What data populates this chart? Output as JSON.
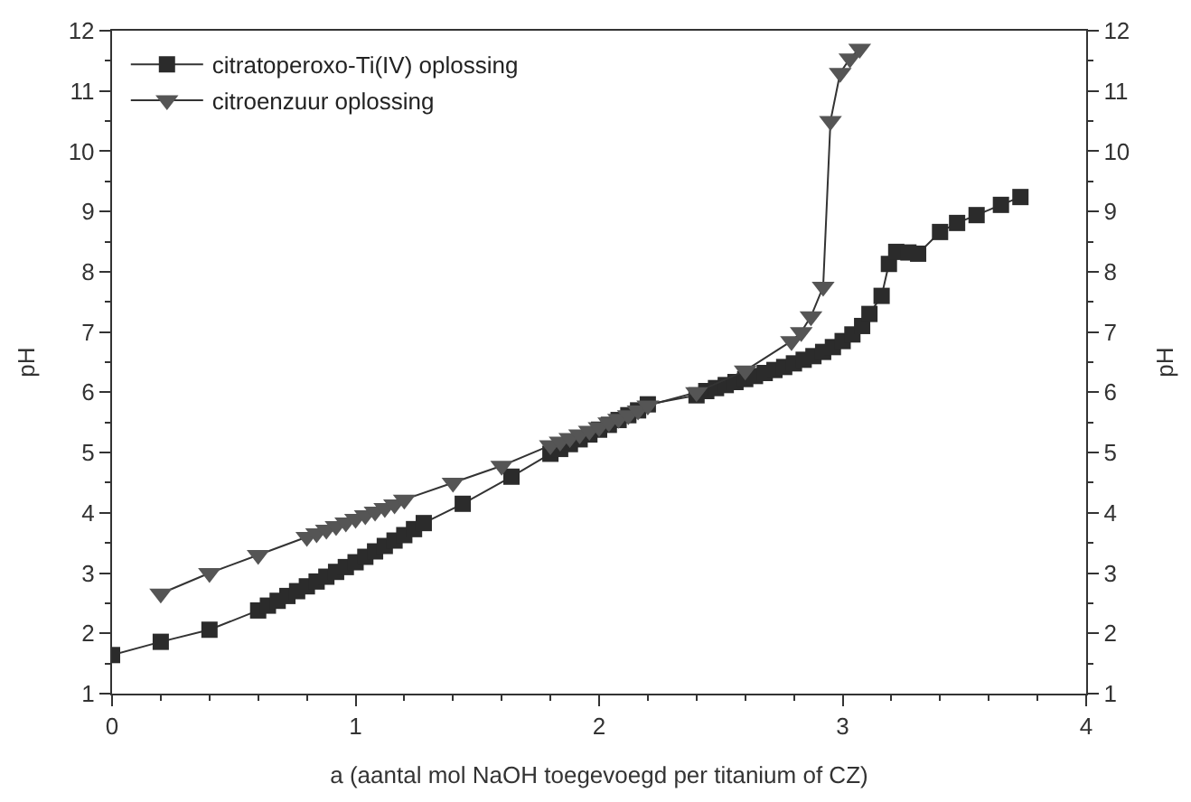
{
  "chart_data": {
    "type": "line",
    "xlabel": "a (aantal mol NaOH toegevoegd per titanium of CZ)",
    "ylabel": "pH",
    "y2label": "pH",
    "xlim": [
      0,
      4
    ],
    "xticks": [
      0,
      1,
      2,
      3,
      4
    ],
    "ylim": [
      1,
      12
    ],
    "yticks": [
      1,
      2,
      3,
      4,
      5,
      6,
      7,
      8,
      9,
      10,
      11,
      12
    ],
    "y2lim": [
      1,
      12
    ],
    "y2ticks": [
      1,
      2,
      3,
      4,
      5,
      6,
      7,
      8,
      9,
      10,
      11,
      12
    ],
    "legend": "top left",
    "series": [
      {
        "name": "citratoperoxo-Ti(IV) oplossing",
        "color": "#2b2b2b",
        "marker": "square",
        "line_style": "solid",
        "x": [
          0,
          0.2,
          0.4,
          0.6,
          0.64,
          0.68,
          0.72,
          0.76,
          0.8,
          0.84,
          0.88,
          0.92,
          0.96,
          1.0,
          1.04,
          1.08,
          1.12,
          1.16,
          1.2,
          1.24,
          1.28,
          1.44,
          1.64,
          1.8,
          1.84,
          1.88,
          1.92,
          1.96,
          2.0,
          2.04,
          2.08,
          2.12,
          2.16,
          2.2,
          2.4,
          2.44,
          2.48,
          2.52,
          2.56,
          2.6,
          2.64,
          2.68,
          2.72,
          2.76,
          2.8,
          2.84,
          2.88,
          2.92,
          2.96,
          3.0,
          3.04,
          3.08,
          3.11,
          3.16,
          3.19,
          3.22,
          3.27,
          3.31,
          3.4,
          3.47,
          3.55,
          3.65,
          3.73
        ],
        "values": [
          1.64,
          1.86,
          2.06,
          2.38,
          2.46,
          2.54,
          2.62,
          2.7,
          2.78,
          2.86,
          2.94,
          3.02,
          3.1,
          3.18,
          3.27,
          3.36,
          3.45,
          3.54,
          3.63,
          3.73,
          3.83,
          4.15,
          4.6,
          4.98,
          5.06,
          5.14,
          5.22,
          5.3,
          5.38,
          5.46,
          5.54,
          5.62,
          5.7,
          5.8,
          5.95,
          6.02,
          6.07,
          6.12,
          6.17,
          6.22,
          6.27,
          6.32,
          6.37,
          6.42,
          6.48,
          6.54,
          6.6,
          6.67,
          6.75,
          6.85,
          6.96,
          7.1,
          7.3,
          7.6,
          8.13,
          8.33,
          8.32,
          8.3,
          8.66,
          8.81,
          8.94,
          9.11,
          9.24
        ]
      },
      {
        "name": "citroenzuur oplossing",
        "color": "#555555",
        "marker": "triangle",
        "line_style": "solid",
        "x": [
          0.2,
          0.4,
          0.6,
          0.8,
          0.84,
          0.88,
          0.92,
          0.96,
          1.0,
          1.04,
          1.08,
          1.12,
          1.16,
          1.2,
          1.4,
          1.6,
          1.8,
          1.84,
          1.88,
          1.92,
          1.96,
          2.0,
          2.04,
          2.08,
          2.12,
          2.16,
          2.2,
          2.4,
          2.6,
          2.79,
          2.83,
          2.87,
          2.92,
          2.95,
          2.99,
          3.03,
          3.07
        ],
        "values": [
          2.66,
          3.0,
          3.3,
          3.6,
          3.66,
          3.72,
          3.78,
          3.84,
          3.9,
          3.96,
          4.02,
          4.08,
          4.14,
          4.22,
          4.5,
          4.78,
          5.12,
          5.18,
          5.24,
          5.3,
          5.36,
          5.42,
          5.5,
          5.56,
          5.62,
          5.7,
          5.78,
          6.0,
          6.36,
          6.85,
          7.0,
          7.26,
          7.75,
          10.5,
          11.3,
          11.54,
          11.7
        ]
      }
    ]
  }
}
